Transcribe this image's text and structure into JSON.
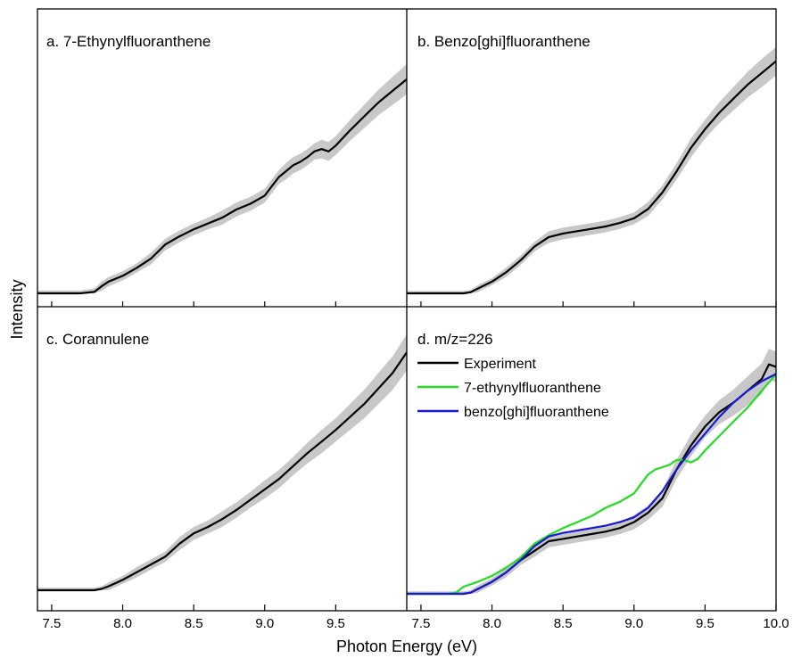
{
  "figure": {
    "xlabel": "Photon Energy (eV)",
    "ylabel": "Intensity"
  },
  "chart_data": [
    {
      "type": "line",
      "panel": "a",
      "title": "a. 7-Ethynylfluoranthene",
      "xlim": [
        7.4,
        10.0
      ],
      "ylim": [
        0,
        1.0
      ],
      "xticks": [
        "7.5",
        "8.0",
        "8.5",
        "9.0",
        "9.5"
      ],
      "yticks": [],
      "band_color": "#c8c8c8",
      "series": [
        {
          "color": "#000000",
          "x": [
            7.4,
            7.5,
            7.6,
            7.7,
            7.8,
            7.85,
            7.9,
            8.0,
            8.1,
            8.2,
            8.3,
            8.4,
            8.5,
            8.6,
            8.7,
            8.8,
            8.9,
            9.0,
            9.05,
            9.1,
            9.15,
            9.2,
            9.25,
            9.3,
            9.35,
            9.4,
            9.45,
            9.5,
            9.6,
            9.7,
            9.8,
            9.9,
            10.0
          ],
          "y": [
            0.0,
            0.0,
            0.0,
            0.0,
            0.006,
            0.03,
            0.05,
            0.075,
            0.11,
            0.15,
            0.21,
            0.245,
            0.275,
            0.3,
            0.325,
            0.36,
            0.385,
            0.42,
            0.46,
            0.5,
            0.525,
            0.55,
            0.565,
            0.585,
            0.61,
            0.62,
            0.61,
            0.635,
            0.7,
            0.76,
            0.82,
            0.87,
            0.92
          ],
          "band": [
            0.012,
            0.012,
            0.012,
            0.012,
            0.015,
            0.02,
            0.02,
            0.02,
            0.02,
            0.025,
            0.025,
            0.025,
            0.025,
            0.025,
            0.03,
            0.03,
            0.03,
            0.03,
            0.03,
            0.03,
            0.035,
            0.035,
            0.035,
            0.035,
            0.035,
            0.04,
            0.04,
            0.04,
            0.045,
            0.05,
            0.055,
            0.06,
            0.065
          ]
        }
      ]
    },
    {
      "type": "line",
      "panel": "b",
      "title": "b. Benzo[ghi]fluoranthene",
      "xlim": [
        7.4,
        10.0
      ],
      "ylim": [
        0,
        1.0
      ],
      "xticks": [
        "7.5",
        "8.0",
        "8.5",
        "9.0",
        "9.5",
        "10.0"
      ],
      "yticks": [],
      "band_color": "#c8c8c8",
      "series": [
        {
          "color": "#000000",
          "x": [
            7.4,
            7.5,
            7.6,
            7.7,
            7.8,
            7.85,
            7.9,
            8.0,
            8.1,
            8.2,
            8.3,
            8.4,
            8.5,
            8.6,
            8.7,
            8.8,
            8.9,
            9.0,
            9.1,
            9.2,
            9.3,
            9.4,
            9.5,
            9.6,
            9.7,
            9.8,
            9.9,
            10.0
          ],
          "y": [
            0.0,
            0.0,
            0.0,
            0.0,
            0.0,
            0.005,
            0.02,
            0.05,
            0.09,
            0.14,
            0.2,
            0.24,
            0.255,
            0.265,
            0.275,
            0.285,
            0.3,
            0.32,
            0.36,
            0.43,
            0.52,
            0.62,
            0.7,
            0.77,
            0.83,
            0.89,
            0.94,
            0.99
          ],
          "band": [
            0.01,
            0.01,
            0.01,
            0.01,
            0.01,
            0.01,
            0.015,
            0.015,
            0.02,
            0.02,
            0.02,
            0.025,
            0.025,
            0.025,
            0.025,
            0.025,
            0.025,
            0.025,
            0.03,
            0.03,
            0.035,
            0.04,
            0.04,
            0.045,
            0.05,
            0.055,
            0.06,
            0.06
          ]
        }
      ]
    },
    {
      "type": "line",
      "panel": "c",
      "title": "c. Corannulene",
      "xlim": [
        7.4,
        10.0
      ],
      "ylim": [
        0,
        1.0
      ],
      "xticks": [
        "7.5",
        "8.0",
        "8.5",
        "9.0",
        "9.5"
      ],
      "yticks": [],
      "band_color": "#c8c8c8",
      "series": [
        {
          "color": "#000000",
          "x": [
            7.4,
            7.5,
            7.6,
            7.7,
            7.8,
            7.85,
            7.9,
            8.0,
            8.1,
            8.2,
            8.3,
            8.4,
            8.5,
            8.6,
            8.7,
            8.8,
            8.9,
            9.0,
            9.1,
            9.2,
            9.3,
            9.4,
            9.5,
            9.6,
            9.7,
            9.8,
            9.9,
            10.0
          ],
          "y": [
            0.0,
            0.0,
            0.0,
            0.0,
            0.0,
            0.005,
            0.015,
            0.04,
            0.07,
            0.1,
            0.13,
            0.18,
            0.22,
            0.245,
            0.275,
            0.31,
            0.35,
            0.39,
            0.43,
            0.48,
            0.53,
            0.575,
            0.62,
            0.67,
            0.72,
            0.78,
            0.84,
            0.92
          ],
          "band": [
            0.01,
            0.01,
            0.01,
            0.01,
            0.01,
            0.01,
            0.015,
            0.015,
            0.02,
            0.02,
            0.02,
            0.025,
            0.025,
            0.025,
            0.03,
            0.03,
            0.03,
            0.035,
            0.035,
            0.035,
            0.04,
            0.045,
            0.045,
            0.05,
            0.055,
            0.06,
            0.065,
            0.07
          ]
        }
      ]
    },
    {
      "type": "line",
      "panel": "d",
      "title": "d. m/z=226",
      "xlim": [
        7.4,
        10.0
      ],
      "ylim": [
        0,
        1.0
      ],
      "xticks": [
        "7.5",
        "8.0",
        "8.5",
        "9.0",
        "9.5",
        "10.0"
      ],
      "yticks": [],
      "band_color": "#c8c8c8",
      "legend": "top-left",
      "series": [
        {
          "name": "Experiment",
          "color": "#000000",
          "x": [
            7.4,
            7.5,
            7.6,
            7.7,
            7.8,
            7.85,
            7.9,
            8.0,
            8.1,
            8.2,
            8.3,
            8.4,
            8.5,
            8.6,
            8.7,
            8.8,
            8.9,
            9.0,
            9.1,
            9.2,
            9.3,
            9.4,
            9.5,
            9.6,
            9.7,
            9.8,
            9.9,
            9.95,
            10.0
          ],
          "y": [
            0.0,
            0.0,
            0.0,
            0.0,
            0.0,
            0.005,
            0.02,
            0.05,
            0.09,
            0.14,
            0.18,
            0.22,
            0.23,
            0.24,
            0.25,
            0.26,
            0.275,
            0.3,
            0.34,
            0.4,
            0.52,
            0.62,
            0.7,
            0.76,
            0.8,
            0.85,
            0.9,
            0.96,
            0.95
          ],
          "band": [
            0.01,
            0.01,
            0.01,
            0.01,
            0.01,
            0.01,
            0.015,
            0.015,
            0.02,
            0.02,
            0.025,
            0.025,
            0.025,
            0.025,
            0.025,
            0.025,
            0.025,
            0.03,
            0.03,
            0.035,
            0.04,
            0.045,
            0.045,
            0.05,
            0.055,
            0.06,
            0.065,
            0.065,
            0.065
          ]
        },
        {
          "name": "7-ethynylfluoranthene",
          "color": "#22dd22",
          "x": [
            7.4,
            7.5,
            7.6,
            7.7,
            7.75,
            7.8,
            7.9,
            8.0,
            8.1,
            8.2,
            8.3,
            8.4,
            8.5,
            8.6,
            8.7,
            8.8,
            8.9,
            9.0,
            9.05,
            9.1,
            9.15,
            9.2,
            9.25,
            9.3,
            9.35,
            9.4,
            9.45,
            9.5,
            9.6,
            9.7,
            9.8,
            9.9,
            10.0
          ],
          "y": [
            0.0,
            0.0,
            0.0,
            0.0,
            0.006,
            0.03,
            0.05,
            0.075,
            0.11,
            0.15,
            0.21,
            0.245,
            0.275,
            0.3,
            0.325,
            0.36,
            0.385,
            0.42,
            0.46,
            0.5,
            0.52,
            0.53,
            0.54,
            0.56,
            0.56,
            0.55,
            0.565,
            0.6,
            0.66,
            0.72,
            0.78,
            0.85,
            0.92
          ]
        },
        {
          "name": "benzo[ghi]fluoranthene",
          "color": "#1a1ad0",
          "x": [
            7.4,
            7.5,
            7.6,
            7.7,
            7.8,
            7.85,
            7.9,
            8.0,
            8.1,
            8.2,
            8.3,
            8.4,
            8.5,
            8.6,
            8.7,
            8.8,
            8.9,
            9.0,
            9.1,
            9.2,
            9.3,
            9.4,
            9.5,
            9.6,
            9.7,
            9.8,
            9.9,
            10.0
          ],
          "y": [
            0.0,
            0.0,
            0.0,
            0.0,
            0.0,
            0.005,
            0.02,
            0.05,
            0.09,
            0.14,
            0.2,
            0.24,
            0.255,
            0.265,
            0.275,
            0.285,
            0.3,
            0.32,
            0.36,
            0.43,
            0.52,
            0.6,
            0.67,
            0.74,
            0.8,
            0.85,
            0.89,
            0.92
          ]
        }
      ]
    }
  ]
}
